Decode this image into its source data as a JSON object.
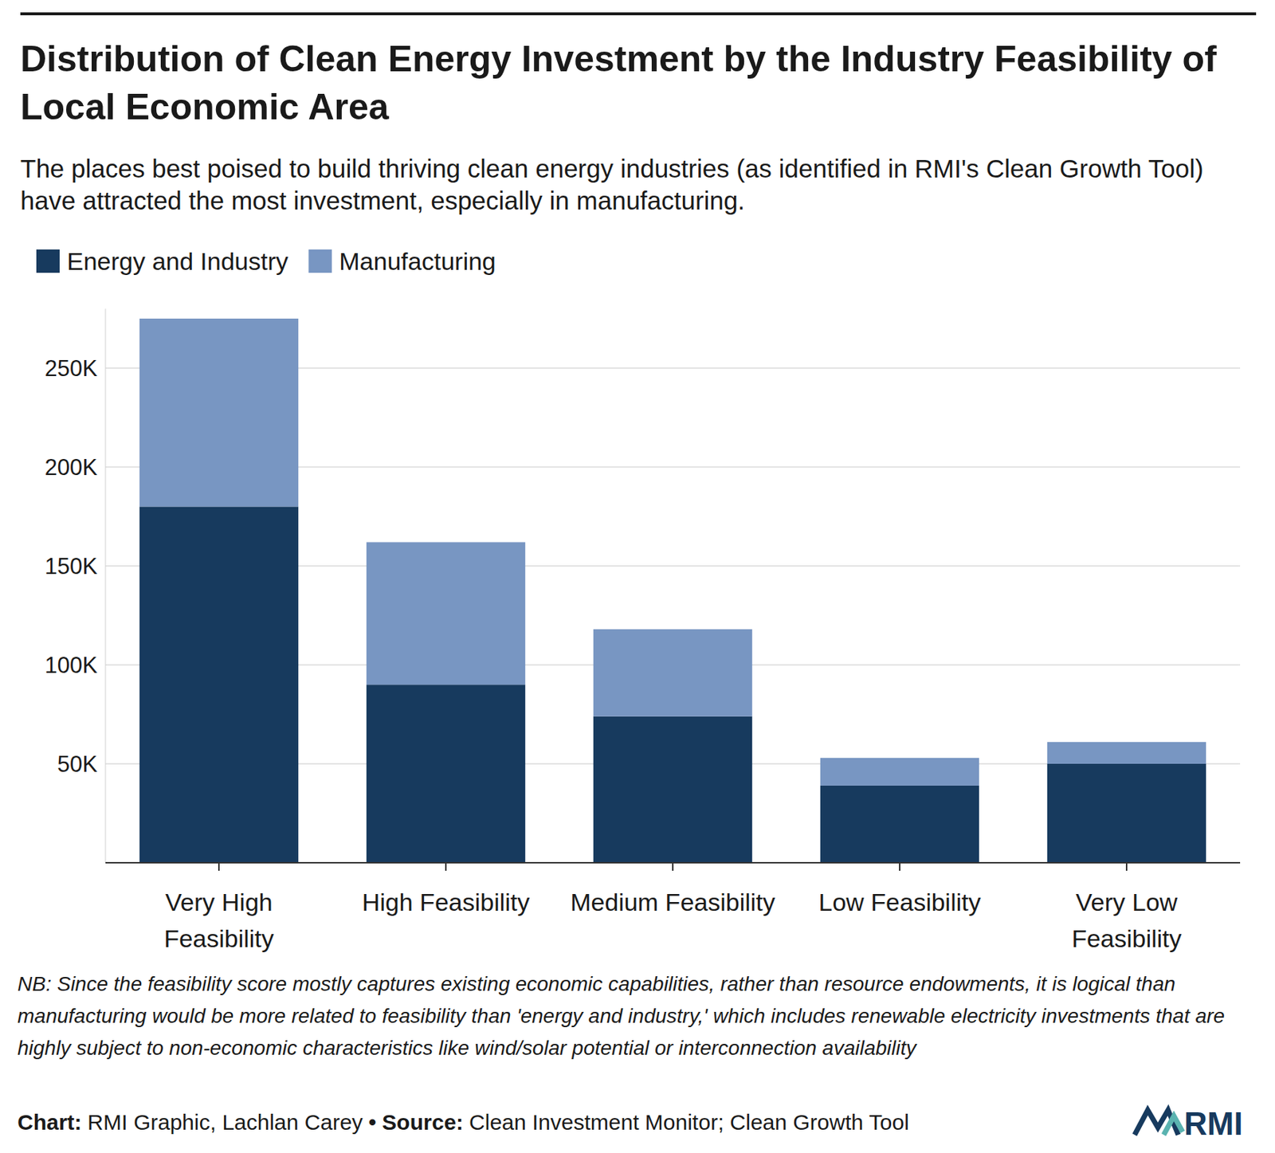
{
  "chart_data": {
    "type": "bar",
    "stacked": true,
    "title": "Distribution of Clean Energy Investment by the Industry Feasibility of Local Economic Area",
    "subtitle": "The places best poised to build thriving clean energy industries (as identified in RMI's Clean Growth Tool) have attracted the most investment, especially in manufacturing.",
    "categories": [
      "Very High Feasibility",
      "High Feasibility",
      "Medium Feasibility",
      "Low Feasibility",
      "Very Low Feasibility"
    ],
    "series": [
      {
        "name": "Energy and Industry",
        "color": "#173a5e",
        "values": [
          180000,
          90000,
          74000,
          39000,
          50000
        ]
      },
      {
        "name": "Manufacturing",
        "color": "#7896c2",
        "values": [
          95000,
          72000,
          44000,
          14000,
          11000
        ]
      }
    ],
    "ylim": [
      0,
      280000
    ],
    "yticks": [
      {
        "value": 50000,
        "label": "50K"
      },
      {
        "value": 100000,
        "label": "100K"
      },
      {
        "value": 150000,
        "label": "150K"
      },
      {
        "value": 200000,
        "label": "200K"
      },
      {
        "value": 250000,
        "label": "250K"
      }
    ],
    "grid": true,
    "legend": "top-left",
    "note": "NB: Since the feasibility score mostly captures existing economic capabilities, rather than resource endowments, it is logical than manufacturing would be more related to feasibility than 'energy and industry,' which includes renewable electricity investments that are highly subject to non-economic characteristics like wind/solar potential or interconnection availability",
    "chart_credit_label": "Chart:",
    "chart_credit": "RMI Graphic, Lachlan Carey",
    "separator": "•",
    "source_label": "Source:",
    "source": "Clean Investment Monitor; Clean Growth Tool",
    "logo": "RMI"
  }
}
